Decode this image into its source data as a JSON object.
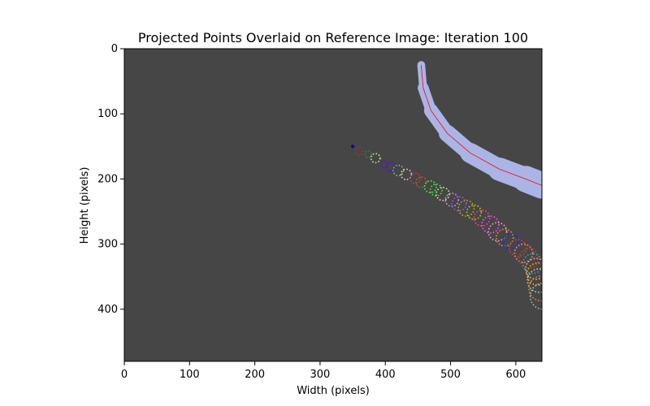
{
  "chart_data": {
    "type": "scatter",
    "title": "Projected Points Overlaid on Reference Image: Iteration 100",
    "xlabel": "Width (pixels)",
    "ylabel": "Height (pixels)",
    "xlim": [
      0,
      640
    ],
    "ylim": [
      480,
      0
    ],
    "xticks": [
      0,
      100,
      200,
      300,
      400,
      500,
      600
    ],
    "yticks": [
      0,
      100,
      200,
      300,
      400
    ],
    "background_color": "#464646",
    "reference_band": {
      "color": "#aab5e6",
      "centerline_color": "#ff0000",
      "centerline": [
        [
          455,
          25
        ],
        [
          458,
          60
        ],
        [
          470,
          95
        ],
        [
          495,
          130
        ],
        [
          530,
          160
        ],
        [
          575,
          185
        ],
        [
          615,
          200
        ],
        [
          640,
          210
        ]
      ],
      "width_start": 12,
      "width_end": 45
    },
    "circles": [
      {
        "x": 350,
        "y": 150,
        "r": 1,
        "color": "#0000cc"
      },
      {
        "x": 360,
        "y": 157,
        "r": 6,
        "color": "#b03030"
      },
      {
        "x": 374,
        "y": 162,
        "r": 5,
        "color": "#2a8a2a"
      },
      {
        "x": 385,
        "y": 168,
        "r": 7,
        "color": "#c8f08c"
      },
      {
        "x": 398,
        "y": 177,
        "r": 5,
        "color": "#6010c0"
      },
      {
        "x": 409,
        "y": 181,
        "r": 7,
        "color": "#5a00ff"
      },
      {
        "x": 420,
        "y": 187,
        "r": 8,
        "color": "#78c850"
      },
      {
        "x": 432,
        "y": 193,
        "r": 8,
        "color": "#f0c8d8"
      },
      {
        "x": 446,
        "y": 199,
        "r": 8,
        "color": "#d03c3c"
      },
      {
        "x": 455,
        "y": 205,
        "r": 8,
        "color": "#c85040"
      },
      {
        "x": 469,
        "y": 212,
        "r": 9,
        "color": "#30ff30"
      },
      {
        "x": 478,
        "y": 217,
        "r": 9,
        "color": "#40e040"
      },
      {
        "x": 488,
        "y": 223,
        "r": 10,
        "color": "#e0e0a0"
      },
      {
        "x": 502,
        "y": 232,
        "r": 10,
        "color": "#c8a0d8"
      },
      {
        "x": 513,
        "y": 238,
        "r": 11,
        "color": "#b040ff"
      },
      {
        "x": 524,
        "y": 245,
        "r": 12,
        "color": "#b4b400"
      },
      {
        "x": 536,
        "y": 251,
        "r": 11,
        "color": "#c8c800"
      },
      {
        "x": 548,
        "y": 260,
        "r": 12,
        "color": "#ff3cb4"
      },
      {
        "x": 561,
        "y": 270,
        "r": 13,
        "color": "#ff50ff"
      },
      {
        "x": 572,
        "y": 281,
        "r": 14,
        "color": "#f0a0c0"
      },
      {
        "x": 583,
        "y": 290,
        "r": 13,
        "color": "#c8a028"
      },
      {
        "x": 592,
        "y": 296,
        "r": 12,
        "color": "#2020ff"
      },
      {
        "x": 603,
        "y": 306,
        "r": 13,
        "color": "#d04040"
      },
      {
        "x": 612,
        "y": 314,
        "r": 14,
        "color": "#ff8c64"
      },
      {
        "x": 620,
        "y": 322,
        "r": 15,
        "color": "#c03c3c"
      },
      {
        "x": 626,
        "y": 330,
        "r": 15,
        "color": "#40a0a0"
      },
      {
        "x": 631,
        "y": 338,
        "r": 16,
        "color": "#ffa0a0"
      },
      {
        "x": 634,
        "y": 346,
        "r": 17,
        "color": "#ffb000"
      },
      {
        "x": 636,
        "y": 356,
        "r": 18,
        "color": "#c8d0a0"
      },
      {
        "x": 639,
        "y": 368,
        "r": 19,
        "color": "#ff8030"
      },
      {
        "x": 642,
        "y": 380,
        "r": 20,
        "color": "#a0c890"
      }
    ]
  }
}
